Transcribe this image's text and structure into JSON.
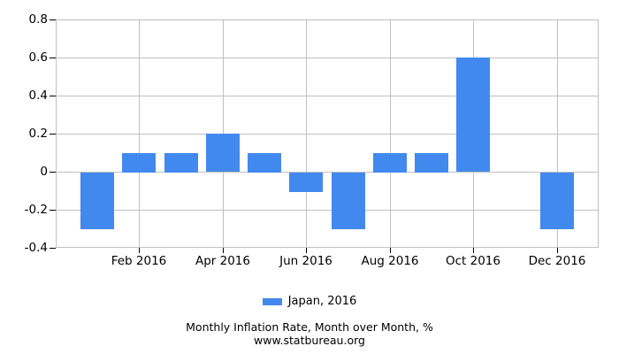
{
  "chart_data": {
    "type": "bar",
    "title": "Monthly Inflation Rate, Month over Month, %",
    "subtitle": "www.statbureau.org",
    "legend": [
      {
        "label": "Japan, 2016",
        "color": "#4189ee"
      }
    ],
    "legend_position": "bottom",
    "categories": [
      "Jan 2016",
      "Feb 2016",
      "Mar 2016",
      "Apr 2016",
      "May 2016",
      "Jun 2016",
      "Jul 2016",
      "Aug 2016",
      "Sep 2016",
      "Oct 2016",
      "Nov 2016",
      "Dec 2016"
    ],
    "values": [
      -0.3,
      0.1,
      0.1,
      0.2,
      0.1,
      -0.1,
      -0.3,
      0.1,
      0.1,
      0.6,
      0,
      -0.3
    ],
    "x_tick_labels": [
      "Feb 2016",
      "Apr 2016",
      "Jun 2016",
      "Aug 2016",
      "Oct 2016",
      "Dec 2016"
    ],
    "x_tick_month_indices": [
      1,
      3,
      5,
      7,
      9,
      11
    ],
    "y_ticks": [
      0.8,
      0.6,
      0.4,
      0.2,
      0,
      -0.2,
      -0.4
    ],
    "y_tick_labels": [
      "0.8",
      "0.6",
      "0.4",
      "0.2",
      "0",
      "-0.2",
      "-0.4"
    ],
    "ylim": [
      -0.4,
      0.8
    ],
    "grid": true,
    "colors": {
      "bar": "#4189ee",
      "grid": "#c0c0c0",
      "axis_tick": "#000000",
      "text": "#000000",
      "background": "#ffffff"
    }
  }
}
